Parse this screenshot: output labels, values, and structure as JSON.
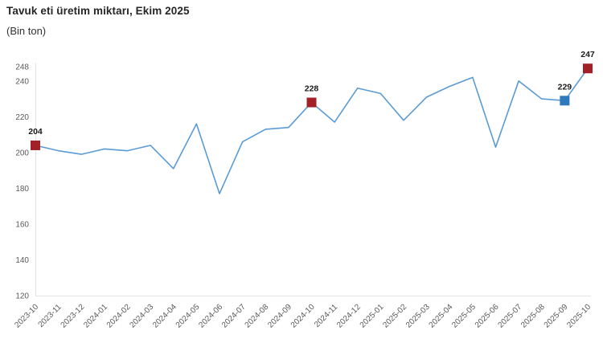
{
  "chart_data": {
    "type": "line",
    "title": "Tavuk eti üretim miktarı, Ekim 2025",
    "subtitle": "(Bin ton)",
    "xlabel": "",
    "ylabel": "",
    "ylim": [
      120,
      248
    ],
    "y_ticks": [
      120,
      140,
      160,
      180,
      200,
      220,
      240,
      248
    ],
    "grid": false,
    "legend": false,
    "line_color": "#5b9bd5",
    "axis_color": "#e4e4e4",
    "tick_label_color": "#595959",
    "data_label_color": "#1a1a1a",
    "marker_red": "#a42028",
    "marker_blue": "#2e79be",
    "categories": [
      "2023-10",
      "2023-11",
      "2023-12",
      "2024-01",
      "2024-02",
      "2024-03",
      "2024-04",
      "2024-05",
      "2024-06",
      "2024-07",
      "2024-08",
      "2024-09",
      "2024-10",
      "2024-11",
      "2024-12",
      "2025-01",
      "2025-02",
      "2025-03",
      "2025-04",
      "2025-05",
      "2025-06",
      "2025-07",
      "2025-08",
      "2025-09",
      "2025-10"
    ],
    "values": [
      204,
      201,
      199,
      202,
      201,
      204,
      191,
      216,
      177,
      206,
      213,
      214,
      228,
      217,
      236,
      233,
      218,
      231,
      237,
      242,
      203,
      240,
      230,
      229,
      247
    ],
    "annotations": [
      {
        "index": 0,
        "label": "204",
        "marker_color": "#a42028"
      },
      {
        "index": 12,
        "label": "228",
        "marker_color": "#a42028"
      },
      {
        "index": 23,
        "label": "229",
        "marker_color": "#2e79be"
      },
      {
        "index": 24,
        "label": "247",
        "marker_color": "#a42028"
      }
    ]
  }
}
